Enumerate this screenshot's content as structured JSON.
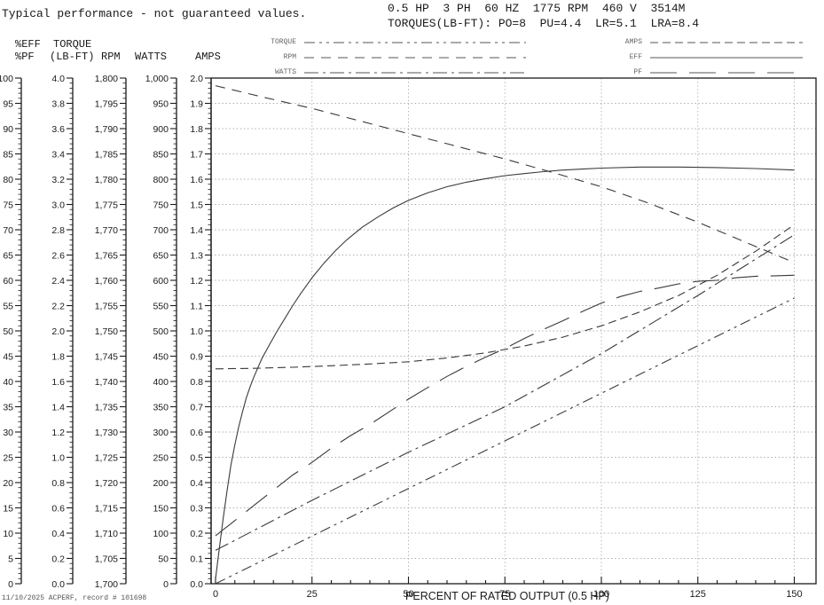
{
  "title": "Typical performance - not guaranteed values.",
  "spec": {
    "line1": "0.5 HP  3 PH  60 HZ  1775 RPM  460 V  3514M",
    "line2": "TORQUES(LB-FT): PO=8  PU=4.4  LR=5.1  LRA=8.4"
  },
  "column_headers": {
    "col1_line1": "%EFF",
    "col1_line2": "%PF",
    "col2_line1": "TORQUE",
    "col2_line2": "(LB-FT)",
    "col3": "RPM",
    "col4": "WATTS",
    "col5": "AMPS"
  },
  "footer": "11/10/2025 ACPERF, record # 101698",
  "colors": {
    "curve": "#3a3a3a",
    "grid": "#b0b0b0",
    "axis": "#1a1a1a",
    "legend_text": "#666666"
  },
  "chart_data": {
    "type": "line",
    "xlabel": "PERCENT OF RATED OUTPUT (0.5 HP)",
    "x_major_ticks": [
      0,
      25,
      50,
      75,
      100,
      125,
      150
    ],
    "x_minor_step": 5,
    "xlim": [
      0,
      150
    ],
    "grid": "dotted horizontal at every 0.1 of amps-scale, vertical at every 25%",
    "scales": [
      {
        "id": "pct",
        "min": 0,
        "max": 100,
        "ticks": [
          "100",
          "95",
          "90",
          "85",
          "80",
          "75",
          "70",
          "65",
          "60",
          "55",
          "50",
          "45",
          "40",
          "35",
          "30",
          "25",
          "20",
          "15",
          "10",
          "5",
          "0"
        ]
      },
      {
        "id": "torque",
        "min": 0,
        "max": 4,
        "ticks": [
          "4.0",
          "3.8",
          "3.6",
          "3.4",
          "3.2",
          "3.0",
          "2.8",
          "2.6",
          "2.4",
          "2.2",
          "2.0",
          "1.8",
          "1.6",
          "1.4",
          "1.2",
          "1.0",
          "0.8",
          "0.6",
          "0.4",
          "0.2",
          "0.0"
        ]
      },
      {
        "id": "rpm",
        "min": 1700,
        "max": 1800,
        "ticks": [
          "1,800",
          "1,795",
          "1,790",
          "1,785",
          "1,780",
          "1,775",
          "1,770",
          "1,765",
          "1,760",
          "1,755",
          "1,750",
          "1,745",
          "1,740",
          "1,735",
          "1,730",
          "1,725",
          "1,720",
          "1,715",
          "1,710",
          "1,705",
          "1,700"
        ]
      },
      {
        "id": "watts",
        "min": 0,
        "max": 1000,
        "ticks": [
          "1,000",
          "950",
          "900",
          "850",
          "800",
          "750",
          "700",
          "650",
          "600",
          "550",
          "500",
          "450",
          "400",
          "350",
          "300",
          "250",
          "200",
          "150",
          "100",
          "50",
          "0"
        ]
      },
      {
        "id": "amps",
        "min": 0,
        "max": 2,
        "ticks": [
          "2.0",
          "1.9",
          "1.8",
          "1.7",
          "1.6",
          "1.5",
          "1.4",
          "1.3",
          "1.2",
          "1.1",
          "1.0",
          "0.9",
          "0.8",
          "0.7",
          "0.6",
          "0.5",
          "0.4",
          "0.3",
          "0.2",
          "0.1",
          "0.0"
        ]
      }
    ],
    "legend": {
      "left": [
        "TORQUE",
        "RPM",
        "WATTS"
      ],
      "right": [
        "AMPS",
        "EFF",
        "PF"
      ]
    },
    "series": [
      {
        "name": "TORQUE",
        "scale": "torque",
        "dash": "12 5 3 5 3 5",
        "points": [
          [
            0,
            0
          ],
          [
            150,
            2.26
          ]
        ]
      },
      {
        "name": "RPM",
        "scale": "rpm",
        "dash": "11 8",
        "points": [
          [
            0,
            1798.5
          ],
          [
            12.5,
            1796.2
          ],
          [
            25,
            1794
          ],
          [
            37.5,
            1791.5
          ],
          [
            50,
            1789
          ],
          [
            62.5,
            1786.5
          ],
          [
            75,
            1784
          ],
          [
            87.5,
            1781.3
          ],
          [
            100,
            1778.5
          ],
          [
            112.5,
            1775.2
          ],
          [
            125,
            1771.5
          ],
          [
            137.5,
            1767.5
          ],
          [
            150,
            1763.5
          ]
        ]
      },
      {
        "name": "WATTS",
        "scale": "watts",
        "dash": "16 5 3 5",
        "points": [
          [
            0,
            66
          ],
          [
            25,
            165
          ],
          [
            50,
            260
          ],
          [
            75,
            350
          ],
          [
            100,
            455
          ],
          [
            125,
            570
          ],
          [
            150,
            690
          ]
        ]
      },
      {
        "name": "AMPS",
        "scale": "amps",
        "dash": "9 5",
        "points": [
          [
            0,
            0.85
          ],
          [
            10,
            0.852
          ],
          [
            20,
            0.856
          ],
          [
            30,
            0.862
          ],
          [
            40,
            0.869
          ],
          [
            50,
            0.878
          ],
          [
            60,
            0.893
          ],
          [
            70,
            0.913
          ],
          [
            80,
            0.94
          ],
          [
            90,
            0.975
          ],
          [
            100,
            1.02
          ],
          [
            110,
            1.075
          ],
          [
            120,
            1.14
          ],
          [
            130,
            1.22
          ],
          [
            140,
            1.315
          ],
          [
            150,
            1.42
          ]
        ]
      },
      {
        "name": "EFF",
        "scale": "pct",
        "dash": "",
        "points": [
          [
            0,
            1
          ],
          [
            1,
            7
          ],
          [
            2,
            13
          ],
          [
            3,
            18.5
          ],
          [
            4,
            23.5
          ],
          [
            5,
            27.5
          ],
          [
            6,
            31
          ],
          [
            7,
            34
          ],
          [
            8,
            36.8
          ],
          [
            9,
            39
          ],
          [
            10,
            41
          ],
          [
            12,
            44.5
          ],
          [
            14,
            47.3
          ],
          [
            16,
            50
          ],
          [
            18,
            52.5
          ],
          [
            20,
            55
          ],
          [
            22,
            57.3
          ],
          [
            25,
            60.5
          ],
          [
            28,
            63.3
          ],
          [
            31,
            65.8
          ],
          [
            34,
            68
          ],
          [
            38,
            70.5
          ],
          [
            42,
            72.5
          ],
          [
            46,
            74.3
          ],
          [
            50,
            75.8
          ],
          [
            55,
            77.3
          ],
          [
            60,
            78.5
          ],
          [
            65,
            79.4
          ],
          [
            70,
            80.1
          ],
          [
            75,
            80.7
          ],
          [
            80,
            81.1
          ],
          [
            85,
            81.5
          ],
          [
            90,
            81.8
          ],
          [
            95,
            82
          ],
          [
            100,
            82.2
          ],
          [
            110,
            82.4
          ],
          [
            120,
            82.4
          ],
          [
            130,
            82.3
          ],
          [
            140,
            82.1
          ],
          [
            150,
            81.8
          ]
        ]
      },
      {
        "name": "PF",
        "scale": "pct",
        "dash": "30 14",
        "points": [
          [
            0,
            9.5
          ],
          [
            5,
            12.5
          ],
          [
            10,
            15.5
          ],
          [
            15,
            18.5
          ],
          [
            20,
            21.5
          ],
          [
            25,
            24
          ],
          [
            30,
            26.8
          ],
          [
            35,
            29.3
          ],
          [
            40,
            31.5
          ],
          [
            45,
            34
          ],
          [
            50,
            36.5
          ],
          [
            55,
            38.8
          ],
          [
            60,
            41
          ],
          [
            65,
            43
          ],
          [
            70,
            44.8
          ],
          [
            75,
            46.5
          ],
          [
            80,
            48.5
          ],
          [
            85,
            50.3
          ],
          [
            90,
            52
          ],
          [
            95,
            53.8
          ],
          [
            100,
            55.5
          ],
          [
            105,
            56.8
          ],
          [
            110,
            57.8
          ],
          [
            115,
            58.5
          ],
          [
            120,
            59.3
          ],
          [
            125,
            59.8
          ],
          [
            130,
            60
          ],
          [
            135,
            60.5
          ],
          [
            140,
            60.8
          ],
          [
            145,
            60.9
          ],
          [
            150,
            61
          ]
        ]
      }
    ]
  }
}
